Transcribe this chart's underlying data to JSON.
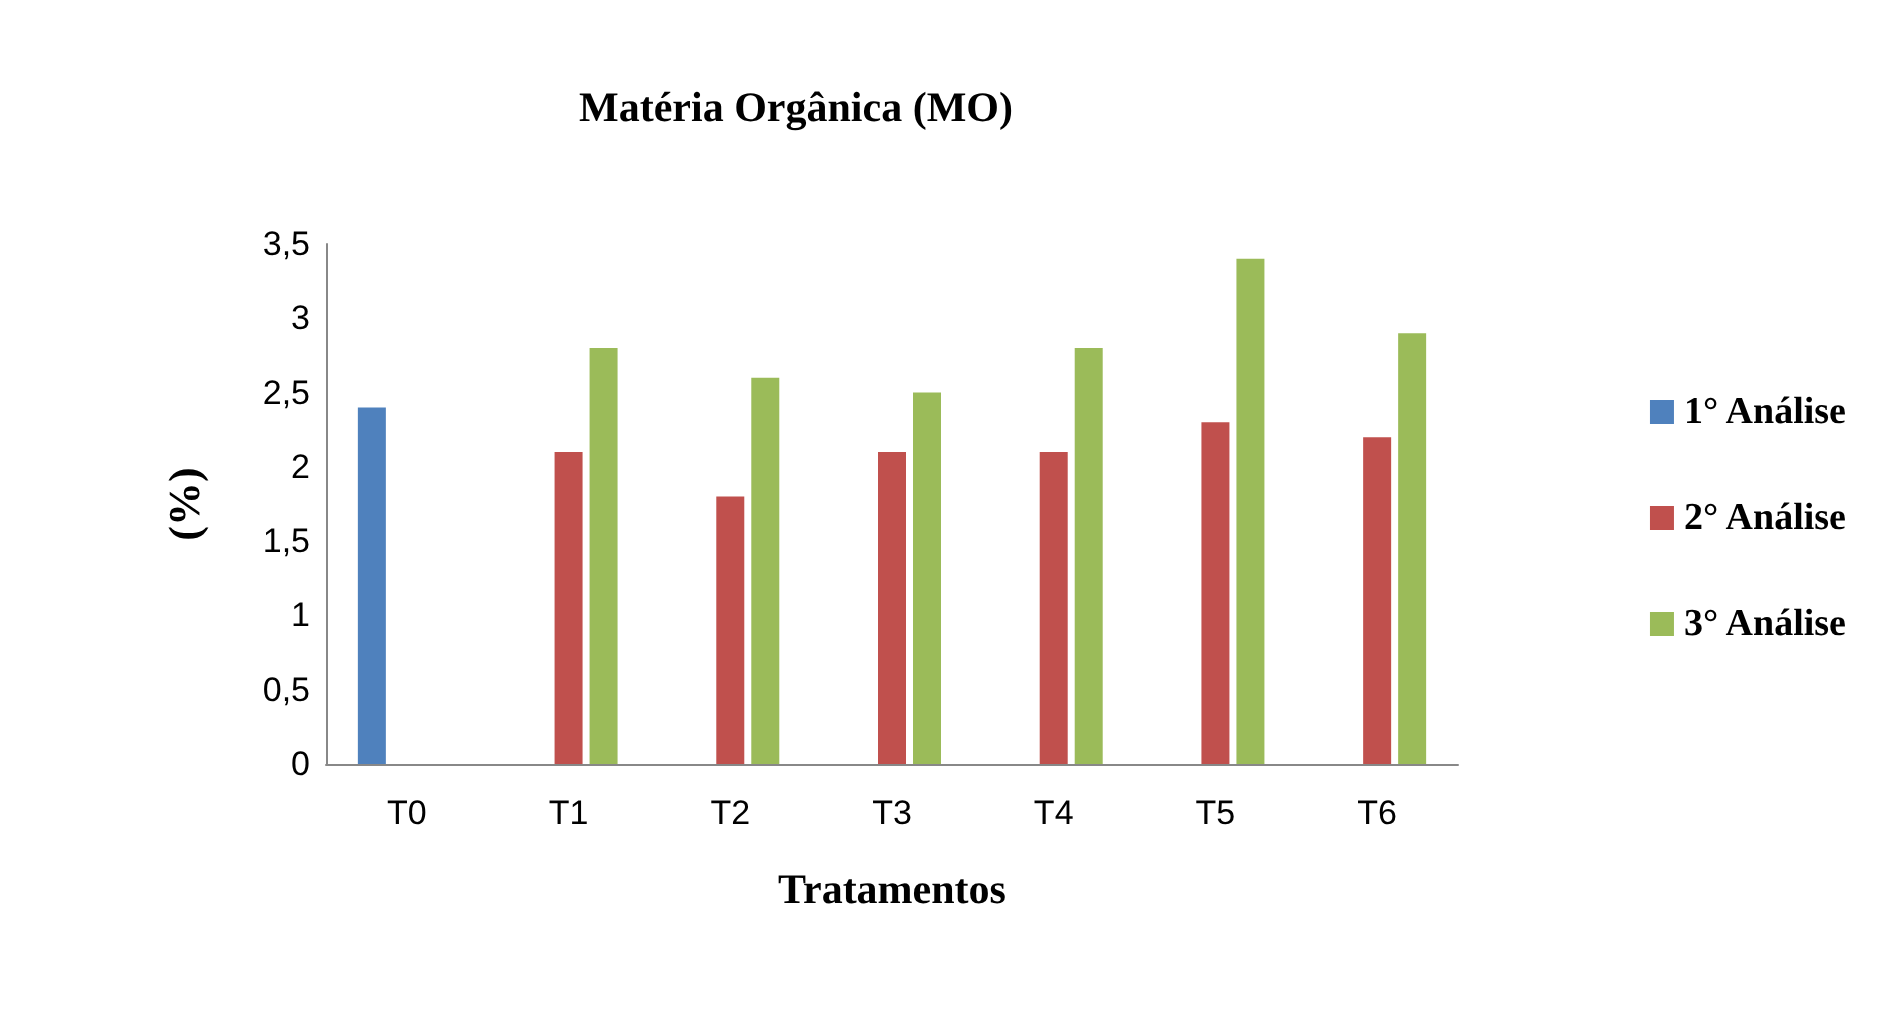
{
  "chart_data": {
    "type": "bar",
    "title": "Matéria Orgânica (MO)",
    "xlabel": "Tratamentos",
    "ylabel": "(%)",
    "categories": [
      "T0",
      "T1",
      "T2",
      "T3",
      "T4",
      "T5",
      "T6"
    ],
    "series": [
      {
        "name": "1° Análise",
        "color": "#4f81bd",
        "values": [
          2.4,
          null,
          null,
          null,
          null,
          null,
          null
        ]
      },
      {
        "name": "2° Análise",
        "color": "#c0504d",
        "values": [
          null,
          2.1,
          1.8,
          2.1,
          2.1,
          2.3,
          2.2
        ]
      },
      {
        "name": "3° Análise",
        "color": "#9bbb59",
        "values": [
          null,
          2.8,
          2.6,
          2.5,
          2.8,
          3.4,
          2.9
        ]
      }
    ],
    "ylim": [
      0,
      3.5
    ],
    "yticks": [
      0,
      {
        "value": 0.5,
        "label": "0,5"
      },
      1,
      {
        "value": 1.5,
        "label": "1,5"
      },
      2,
      {
        "value": 2.5,
        "label": "2,5"
      },
      3,
      {
        "value": 3.5,
        "label": "3,5"
      }
    ],
    "grid": false,
    "legend": "right"
  }
}
